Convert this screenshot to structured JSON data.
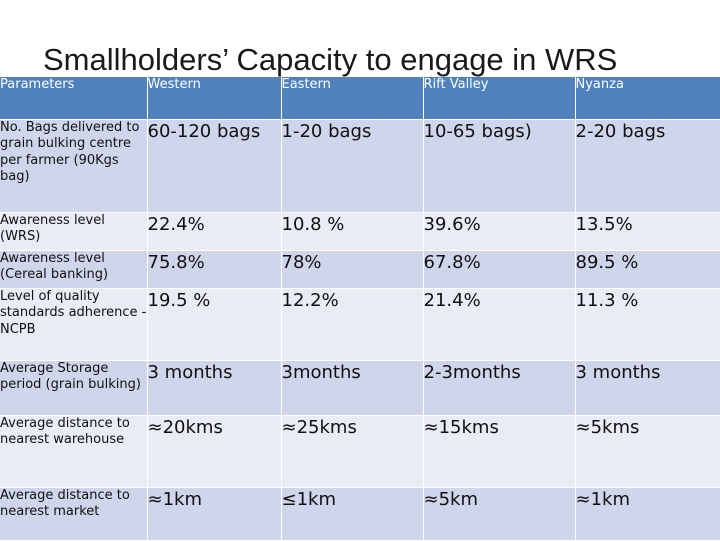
{
  "title": "Smallholders’ Capacity to engage in WRS",
  "headers": [
    "Parameters",
    "Western",
    "Eastern",
    "Rift Valley",
    "Nyanza"
  ],
  "rows": [
    {
      "label": "No. Bags delivered to grain bulking centre per farmer (90Kgs bag)",
      "values": [
        "60-120 bags",
        "1-20 bags",
        "10-65 bags)",
        "2-20 bags"
      ]
    },
    {
      "label": "Awareness level (WRS)",
      "values": [
        "22.4%",
        "10.8 %",
        "39.6%",
        "13.5%"
      ]
    },
    {
      "label": "Awareness level (Cereal banking)",
      "values": [
        "75.8%",
        "78%",
        "67.8%",
        "89.5 %"
      ]
    },
    {
      "label": "Level of quality standards adherence -NCPB",
      "values": [
        "19.5 %",
        "12.2%",
        "21.4%",
        "11.3 %"
      ]
    },
    {
      "label": "Average Storage period (grain bulking)",
      "values": [
        "3 months",
        "3months",
        "2-3months",
        "3 months"
      ]
    },
    {
      "label": "Average distance to nearest warehouse",
      "values": [
        "≈20kms",
        "≈25kms",
        "≈15kms",
        "≈5kms"
      ]
    },
    {
      "label": "Average distance to nearest market",
      "values": [
        "≈1km",
        "≤1km",
        "≈5km",
        "≈1km"
      ]
    }
  ]
}
